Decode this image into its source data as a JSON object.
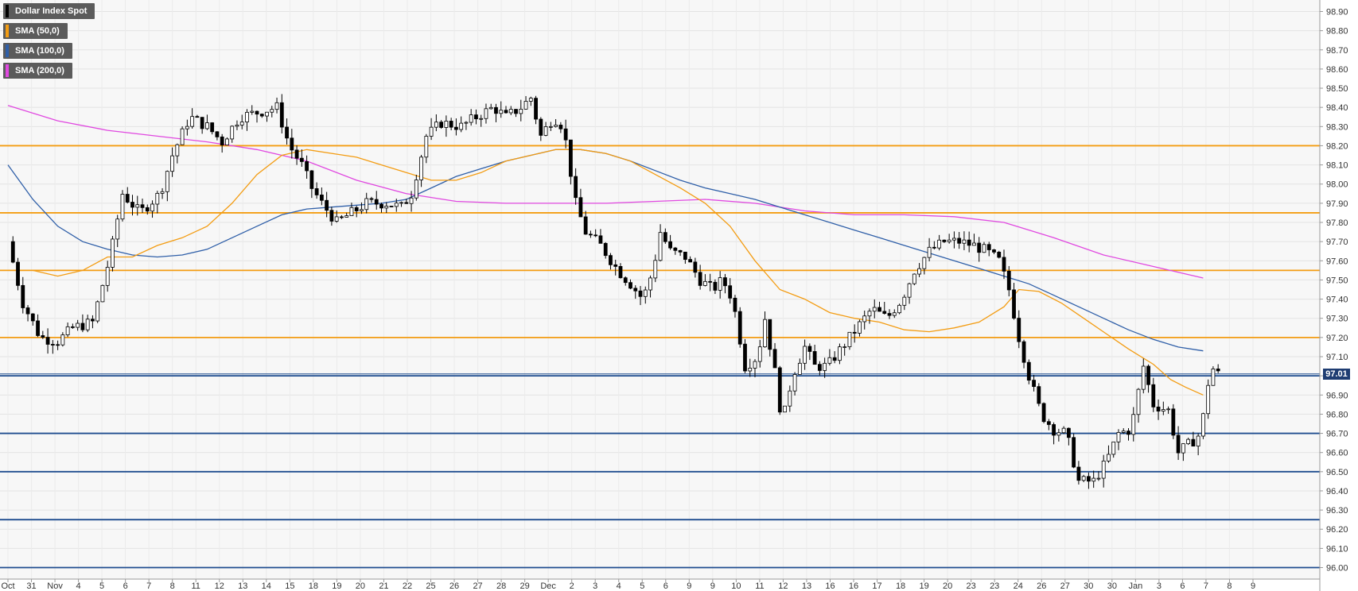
{
  "chart_data": {
    "type": "candlestick",
    "instrument": "Dollar Index Spot",
    "yrange": [
      95.94,
      98.96
    ],
    "yticks": [
      98.9,
      98.8,
      98.7,
      98.6,
      98.5,
      98.4,
      98.3,
      98.2,
      98.1,
      98.0,
      97.9,
      97.8,
      97.7,
      97.6,
      97.5,
      97.4,
      97.3,
      97.2,
      97.1,
      97.0,
      96.9,
      96.8,
      96.7,
      96.6,
      96.5,
      96.4,
      96.3,
      96.2,
      96.1,
      96.0
    ],
    "x_labels": [
      "Oct",
      "31",
      "Nov",
      "4",
      "5",
      "6",
      "7",
      "8",
      "11",
      "12",
      "13",
      "14",
      "15",
      "18",
      "19",
      "20",
      "21",
      "22",
      "25",
      "26",
      "27",
      "28",
      "29",
      "Dec",
      "2",
      "3",
      "4",
      "5",
      "6",
      "9",
      "9",
      "10",
      "11",
      "12",
      "13",
      "16",
      "16",
      "17",
      "18",
      "19",
      "20",
      "23",
      "23",
      "24",
      "26",
      "27",
      "30",
      "30",
      "Jan",
      "3",
      "6",
      "7",
      "8",
      "9"
    ],
    "current_price": "97.01",
    "current_value": 97.01,
    "legend": [
      {
        "label": "Dollar Index Spot",
        "color": "#000000"
      },
      {
        "label": "SMA (50,0)",
        "color": "#f39c12"
      },
      {
        "label": "SMA (100,0)",
        "color": "#2f5fa8"
      },
      {
        "label": "SMA (200,0)",
        "color": "#e048e0"
      }
    ],
    "resistance_levels": [
      98.2,
      97.85,
      97.55,
      97.2
    ],
    "support_levels": [
      97.0,
      96.7,
      96.5,
      96.25,
      96.0
    ],
    "close_path": [
      [
        0,
        97.7
      ],
      [
        0.6,
        97.38
      ],
      [
        1.3,
        97.2
      ],
      [
        2,
        97.18
      ],
      [
        2.6,
        97.25
      ],
      [
        3.4,
        97.28
      ],
      [
        4.1,
        97.62
      ],
      [
        4.6,
        97.95
      ],
      [
        5.3,
        97.85
      ],
      [
        6.1,
        97.95
      ],
      [
        6.6,
        98.15
      ],
      [
        7.3,
        98.35
      ],
      [
        8.0,
        98.3
      ],
      [
        8.6,
        98.22
      ],
      [
        9.3,
        98.35
      ],
      [
        10.2,
        98.38
      ],
      [
        10.8,
        98.4
      ],
      [
        11.3,
        98.2
      ],
      [
        11.8,
        98.1
      ],
      [
        12.2,
        97.98
      ],
      [
        12.6,
        97.9
      ],
      [
        13.2,
        97.8
      ],
      [
        13.8,
        97.85
      ],
      [
        14.4,
        97.9
      ],
      [
        15.2,
        97.9
      ],
      [
        15.8,
        97.88
      ],
      [
        16.2,
        97.95
      ],
      [
        16.8,
        98.25
      ],
      [
        17.4,
        98.32
      ],
      [
        18.2,
        98.3
      ],
      [
        18.8,
        98.35
      ],
      [
        19.5,
        98.4
      ],
      [
        20.0,
        98.35
      ],
      [
        20.6,
        98.4
      ],
      [
        21.0,
        98.45
      ],
      [
        21.4,
        98.25
      ],
      [
        21.9,
        98.35
      ],
      [
        22.3,
        98.3
      ],
      [
        22.8,
        97.9
      ],
      [
        23.2,
        97.75
      ],
      [
        23.8,
        97.68
      ],
      [
        24.5,
        97.55
      ],
      [
        25.0,
        97.48
      ],
      [
        25.5,
        97.4
      ],
      [
        25.9,
        97.55
      ],
      [
        26.2,
        97.75
      ],
      [
        26.6,
        97.65
      ],
      [
        27.2,
        97.62
      ],
      [
        27.8,
        97.5
      ],
      [
        28.3,
        97.45
      ],
      [
        28.7,
        97.5
      ],
      [
        29.1,
        97.4
      ],
      [
        29.6,
        97.05
      ],
      [
        30.1,
        97.1
      ],
      [
        30.4,
        97.3
      ],
      [
        30.8,
        97.02
      ],
      [
        31.1,
        96.75
      ],
      [
        31.5,
        97.0
      ],
      [
        32.0,
        97.15
      ],
      [
        32.4,
        97.05
      ],
      [
        32.9,
        97.05
      ],
      [
        33.5,
        97.15
      ],
      [
        34.1,
        97.25
      ],
      [
        34.7,
        97.35
      ],
      [
        35.3,
        97.3
      ],
      [
        35.9,
        97.4
      ],
      [
        36.4,
        97.55
      ],
      [
        37.0,
        97.65
      ],
      [
        37.6,
        97.7
      ],
      [
        38.2,
        97.7
      ],
      [
        38.8,
        97.68
      ],
      [
        39.3,
        97.65
      ],
      [
        39.8,
        97.6
      ],
      [
        40.2,
        97.45
      ],
      [
        40.6,
        97.2
      ],
      [
        41.0,
        97.0
      ],
      [
        41.5,
        96.8
      ],
      [
        42.0,
        96.72
      ],
      [
        42.5,
        96.7
      ],
      [
        43.0,
        96.45
      ],
      [
        43.6,
        96.45
      ],
      [
        44.1,
        96.55
      ],
      [
        44.6,
        96.7
      ],
      [
        45.1,
        96.72
      ],
      [
        45.6,
        97.05
      ],
      [
        46.0,
        96.85
      ],
      [
        46.6,
        96.82
      ],
      [
        47.0,
        96.6
      ],
      [
        47.5,
        96.65
      ],
      [
        47.9,
        96.7
      ],
      [
        48.3,
        97.05
      ],
      [
        48.6,
        97.01
      ]
    ],
    "sma50": [
      [
        0,
        97.55
      ],
      [
        1,
        97.55
      ],
      [
        2,
        97.52
      ],
      [
        3,
        97.55
      ],
      [
        4,
        97.62
      ],
      [
        5,
        97.62
      ],
      [
        6,
        97.68
      ],
      [
        7,
        97.72
      ],
      [
        8,
        97.78
      ],
      [
        9,
        97.9
      ],
      [
        10,
        98.05
      ],
      [
        11,
        98.15
      ],
      [
        12,
        98.18
      ],
      [
        13,
        98.16
      ],
      [
        14,
        98.14
      ],
      [
        15,
        98.1
      ],
      [
        16,
        98.06
      ],
      [
        17,
        98.02
      ],
      [
        18,
        98.02
      ],
      [
        19,
        98.06
      ],
      [
        20,
        98.12
      ],
      [
        21,
        98.15
      ],
      [
        22,
        98.18
      ],
      [
        23,
        98.18
      ],
      [
        24,
        98.16
      ],
      [
        25,
        98.12
      ],
      [
        26,
        98.05
      ],
      [
        27,
        97.98
      ],
      [
        28,
        97.9
      ],
      [
        29,
        97.78
      ],
      [
        30,
        97.6
      ],
      [
        31,
        97.45
      ],
      [
        32,
        97.4
      ],
      [
        33,
        97.33
      ],
      [
        34,
        97.3
      ],
      [
        35,
        97.28
      ],
      [
        36,
        97.24
      ],
      [
        37,
        97.23
      ],
      [
        38,
        97.25
      ],
      [
        39,
        97.28
      ],
      [
        40,
        97.36
      ],
      [
        40.6,
        97.45
      ],
      [
        41.4,
        97.44
      ],
      [
        42.3,
        97.38
      ],
      [
        43.2,
        97.3
      ],
      [
        44.1,
        97.22
      ],
      [
        45.0,
        97.14
      ],
      [
        46.0,
        97.06
      ],
      [
        46.7,
        96.98
      ],
      [
        47.3,
        96.94
      ],
      [
        48.0,
        96.9
      ]
    ],
    "sma100": [
      [
        0,
        98.1
      ],
      [
        1,
        97.92
      ],
      [
        2,
        97.78
      ],
      [
        3,
        97.7
      ],
      [
        4,
        97.66
      ],
      [
        5,
        97.63
      ],
      [
        6,
        97.62
      ],
      [
        7,
        97.63
      ],
      [
        8,
        97.66
      ],
      [
        9,
        97.72
      ],
      [
        10,
        97.78
      ],
      [
        11,
        97.84
      ],
      [
        12,
        97.87
      ],
      [
        13,
        97.88
      ],
      [
        14,
        97.89
      ],
      [
        15,
        97.9
      ],
      [
        16,
        97.92
      ],
      [
        17,
        97.98
      ],
      [
        18,
        98.04
      ],
      [
        19,
        98.08
      ],
      [
        20,
        98.12
      ],
      [
        21,
        98.15
      ],
      [
        22,
        98.18
      ],
      [
        23,
        98.18
      ],
      [
        24,
        98.16
      ],
      [
        25,
        98.12
      ],
      [
        26,
        98.07
      ],
      [
        27,
        98.02
      ],
      [
        28,
        97.98
      ],
      [
        29,
        97.95
      ],
      [
        30,
        97.92
      ],
      [
        31,
        97.88
      ],
      [
        32,
        97.84
      ],
      [
        33,
        97.8
      ],
      [
        34,
        97.76
      ],
      [
        35,
        97.72
      ],
      [
        36,
        97.68
      ],
      [
        37,
        97.64
      ],
      [
        38,
        97.6
      ],
      [
        39,
        97.56
      ],
      [
        40,
        97.52
      ],
      [
        41,
        97.48
      ],
      [
        42,
        97.42
      ],
      [
        43,
        97.36
      ],
      [
        44,
        97.3
      ],
      [
        45,
        97.24
      ],
      [
        46,
        97.19
      ],
      [
        47,
        97.15
      ],
      [
        48,
        97.13
      ]
    ],
    "sma200": [
      [
        0,
        98.41
      ],
      [
        2,
        98.33
      ],
      [
        4,
        98.28
      ],
      [
        6,
        98.25
      ],
      [
        8,
        98.22
      ],
      [
        10,
        98.18
      ],
      [
        12,
        98.12
      ],
      [
        14,
        98.02
      ],
      [
        16,
        97.95
      ],
      [
        18,
        97.91
      ],
      [
        20,
        97.9
      ],
      [
        22,
        97.9
      ],
      [
        24,
        97.9
      ],
      [
        26,
        97.91
      ],
      [
        28,
        97.92
      ],
      [
        30,
        97.9
      ],
      [
        32,
        97.86
      ],
      [
        34,
        97.84
      ],
      [
        36,
        97.84
      ],
      [
        38,
        97.83
      ],
      [
        40,
        97.8
      ],
      [
        42,
        97.72
      ],
      [
        44,
        97.63
      ],
      [
        46,
        97.57
      ],
      [
        48,
        97.51
      ]
    ]
  }
}
